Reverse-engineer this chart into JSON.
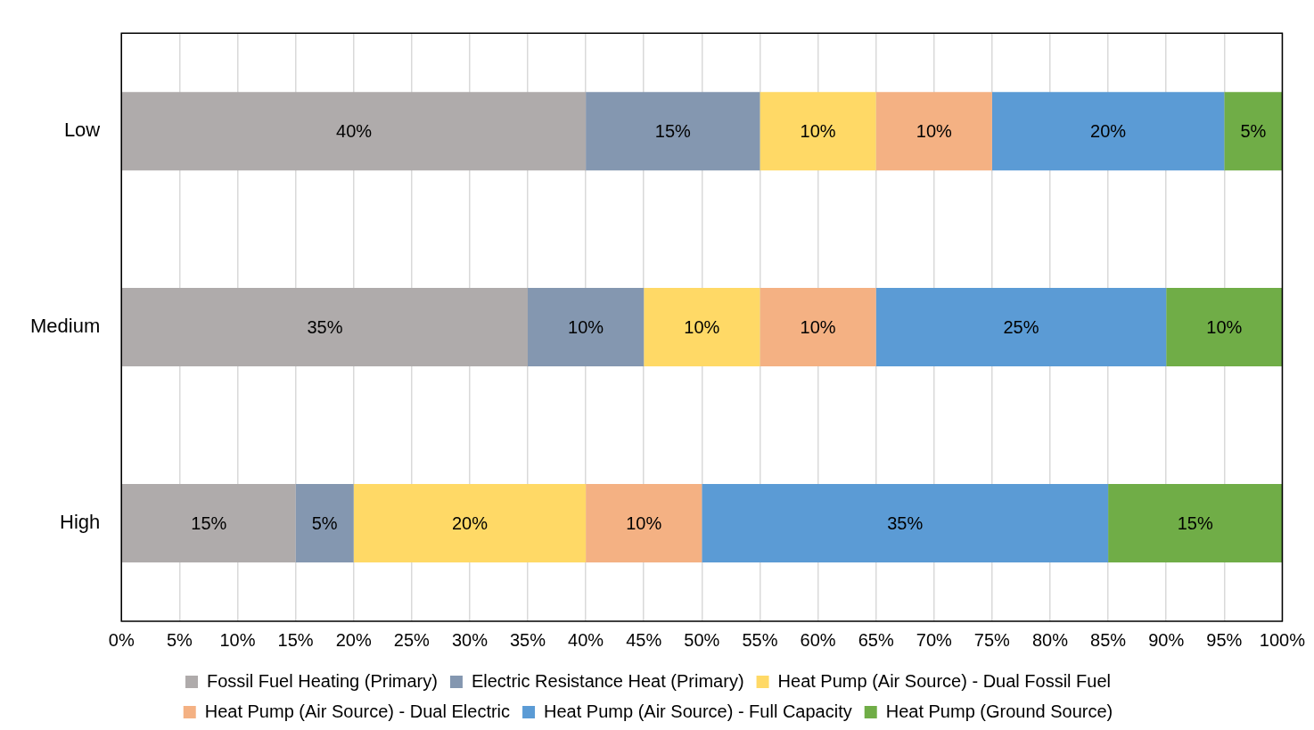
{
  "chart_data": {
    "type": "bar",
    "orientation": "horizontal",
    "stacked": true,
    "categories": [
      "Low",
      "Medium",
      "High"
    ],
    "series": [
      {
        "name": "Fossil Fuel Heating (Primary)",
        "color": "#afabab",
        "values": [
          40,
          35,
          15
        ],
        "value_labels": [
          "40%",
          "35%",
          "15%"
        ]
      },
      {
        "name": "Electric Resistance Heat (Primary)",
        "color": "#8497b0",
        "values": [
          15,
          10,
          5
        ],
        "value_labels": [
          "15%",
          "10%",
          "5%"
        ]
      },
      {
        "name": "Heat Pump (Air Source) - Dual Fossil Fuel",
        "color": "#ffd966",
        "values": [
          10,
          10,
          20
        ],
        "value_labels": [
          "10%",
          "10%",
          "20%"
        ]
      },
      {
        "name": "Heat Pump (Air Source) - Dual Electric",
        "color": "#f4b183",
        "values": [
          10,
          10,
          10
        ],
        "value_labels": [
          "10%",
          "10%",
          "10%"
        ]
      },
      {
        "name": "Heat Pump (Air Source) - Full Capacity",
        "color": "#5b9bd5",
        "values": [
          20,
          25,
          35
        ],
        "value_labels": [
          "20%",
          "25%",
          "35%"
        ]
      },
      {
        "name": "Heat Pump (Ground Source)",
        "color": "#70ad47",
        "values": [
          5,
          10,
          15
        ],
        "value_labels": [
          "5%",
          "10%",
          "15%"
        ]
      }
    ],
    "xlim": [
      0,
      100
    ],
    "xticks": [
      {
        "value": 0,
        "label": "0%"
      },
      {
        "value": 5,
        "label": "5%"
      },
      {
        "value": 10,
        "label": "10%"
      },
      {
        "value": 15,
        "label": "15%"
      },
      {
        "value": 20,
        "label": "20%"
      },
      {
        "value": 25,
        "label": "25%"
      },
      {
        "value": 30,
        "label": "30%"
      },
      {
        "value": 35,
        "label": "35%"
      },
      {
        "value": 40,
        "label": "40%"
      },
      {
        "value": 45,
        "label": "45%"
      },
      {
        "value": 50,
        "label": "50%"
      },
      {
        "value": 55,
        "label": "55%"
      },
      {
        "value": 60,
        "label": "60%"
      },
      {
        "value": 65,
        "label": "65%"
      },
      {
        "value": 70,
        "label": "70%"
      },
      {
        "value": 75,
        "label": "75%"
      },
      {
        "value": 80,
        "label": "80%"
      },
      {
        "value": 85,
        "label": "85%"
      },
      {
        "value": 90,
        "label": "90%"
      },
      {
        "value": 95,
        "label": "95%"
      },
      {
        "value": 100,
        "label": "100%"
      }
    ],
    "grid": "x",
    "legend": "bottom"
  }
}
